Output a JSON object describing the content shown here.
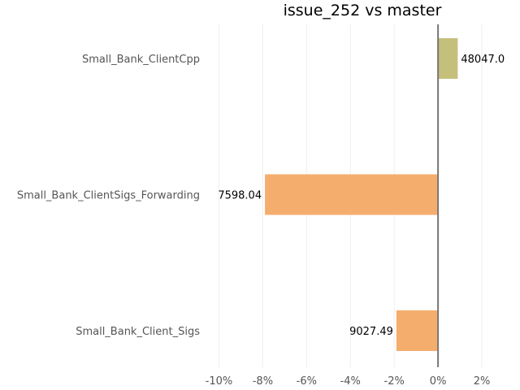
{
  "chart_data": {
    "type": "bar",
    "orientation": "horizontal",
    "title": "issue_252 vs master",
    "xlabel": "",
    "ylabel": "",
    "categories": [
      "Small_Bank_ClientCpp",
      "Small_Bank_ClientSigs_Forwarding",
      "Small_Bank_Client_Sigs"
    ],
    "values": [
      0.9,
      -7.9,
      -1.9
    ],
    "data_labels": [
      "48047.0",
      "7598.04",
      "9027.49"
    ],
    "bar_colors": [
      "#c5bf7c",
      "#f5ad6e",
      "#f5ad6e"
    ],
    "xlim": [
      -10.5,
      3.0
    ],
    "xticks": [
      -10,
      -8,
      -6,
      -4,
      -2,
      0,
      2
    ],
    "xtick_labels": [
      "-10%",
      "-8%",
      "-6%",
      "-4%",
      "-2%",
      "0%",
      "2%"
    ],
    "grid": true,
    "legend": "none"
  }
}
